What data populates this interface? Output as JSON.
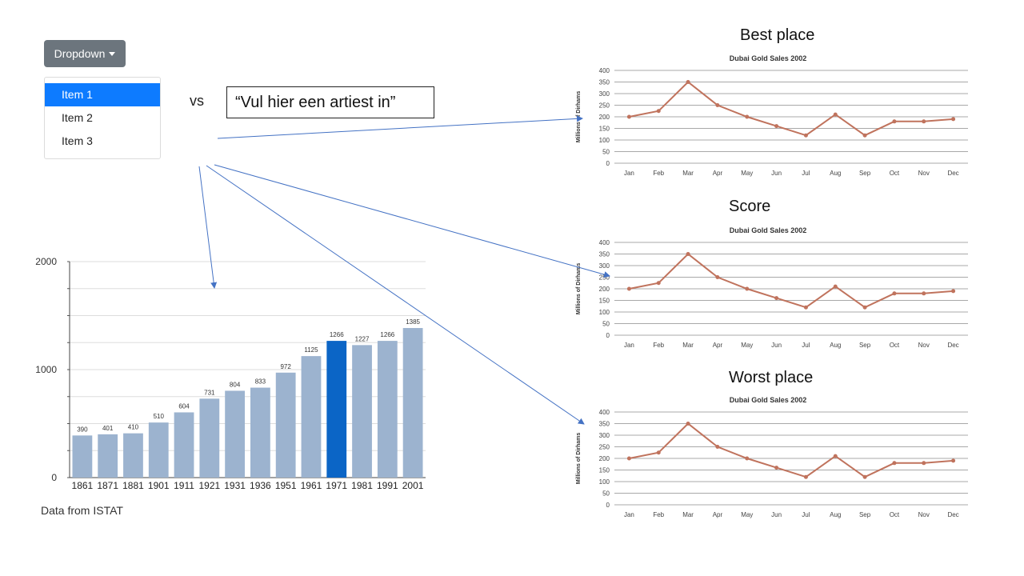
{
  "dropdown": {
    "label": "Dropdown",
    "items": [
      {
        "label": "Item 1",
        "active": true
      },
      {
        "label": "Item 2",
        "active": false
      },
      {
        "label": "Item 3",
        "active": false
      }
    ]
  },
  "vs_label": "vs",
  "artist_input": {
    "placeholder": "“Vul hier een artiest in”"
  },
  "sections": {
    "best_title": "Best place",
    "score_title": "Score",
    "worst_title": "Worst place"
  },
  "data_source": "Data from ISTAT",
  "colors": {
    "button": "#6c757d",
    "active_item": "#0d7bff",
    "bar": "#9cb3cf",
    "bar_highlight": "#0b65c6",
    "line": "#c0735d",
    "arrow": "#4472c4"
  },
  "chart_data": [
    {
      "type": "bar",
      "title": "",
      "categories": [
        "1861",
        "1871",
        "1881",
        "1901",
        "1911",
        "1921",
        "1931",
        "1936",
        "1951",
        "1961",
        "1971",
        "1981",
        "1991",
        "2001"
      ],
      "values": [
        390,
        401,
        410,
        510,
        604,
        731,
        804,
        833,
        972,
        1125,
        1266,
        1227,
        1266,
        1385
      ],
      "data_labels": [
        "390",
        "401",
        "410",
        "510",
        "604",
        "731",
        "804",
        "833",
        "972",
        "1125",
        "1266",
        "1227",
        "1266",
        "1385"
      ],
      "highlight_index": 10,
      "ylim": [
        0,
        2000
      ],
      "yticks": [
        "0",
        "1000",
        "2000"
      ],
      "grid": true,
      "xlabel": "",
      "ylabel": ""
    },
    {
      "type": "line",
      "title": "Dubai Gold Sales 2002",
      "ylabel": "Millions of Dirhams",
      "categories": [
        "Jan",
        "Feb",
        "Mar",
        "Apr",
        "May",
        "Jun",
        "Jul",
        "Aug",
        "Sep",
        "Oct",
        "Nov",
        "Dec"
      ],
      "values": [
        200,
        225,
        350,
        250,
        200,
        160,
        120,
        210,
        120,
        180,
        180,
        190
      ],
      "ylim": [
        0,
        400
      ],
      "yticks": [
        "0",
        "50",
        "100",
        "150",
        "200",
        "250",
        "300",
        "350",
        "400"
      ],
      "grid": true
    },
    {
      "type": "line",
      "title": "Dubai Gold Sales 2002",
      "ylabel": "Millions of Dirhams",
      "categories": [
        "Jan",
        "Feb",
        "Mar",
        "Apr",
        "May",
        "Jun",
        "Jul",
        "Aug",
        "Sep",
        "Oct",
        "Nov",
        "Dec"
      ],
      "values": [
        200,
        225,
        350,
        250,
        200,
        160,
        120,
        210,
        120,
        180,
        180,
        190
      ],
      "ylim": [
        0,
        400
      ],
      "yticks": [
        "0",
        "50",
        "100",
        "150",
        "200",
        "250",
        "300",
        "350",
        "400"
      ],
      "grid": true
    },
    {
      "type": "line",
      "title": "Dubai Gold Sales 2002",
      "ylabel": "Millions of Dirhams",
      "categories": [
        "Jan",
        "Feb",
        "Mar",
        "Apr",
        "May",
        "Jun",
        "Jul",
        "Aug",
        "Sep",
        "Oct",
        "Nov",
        "Dec"
      ],
      "values": [
        200,
        225,
        350,
        250,
        200,
        160,
        120,
        210,
        120,
        180,
        180,
        190
      ],
      "ylim": [
        0,
        400
      ],
      "yticks": [
        "0",
        "50",
        "100",
        "150",
        "200",
        "250",
        "300",
        "350",
        "400"
      ],
      "grid": true
    }
  ]
}
